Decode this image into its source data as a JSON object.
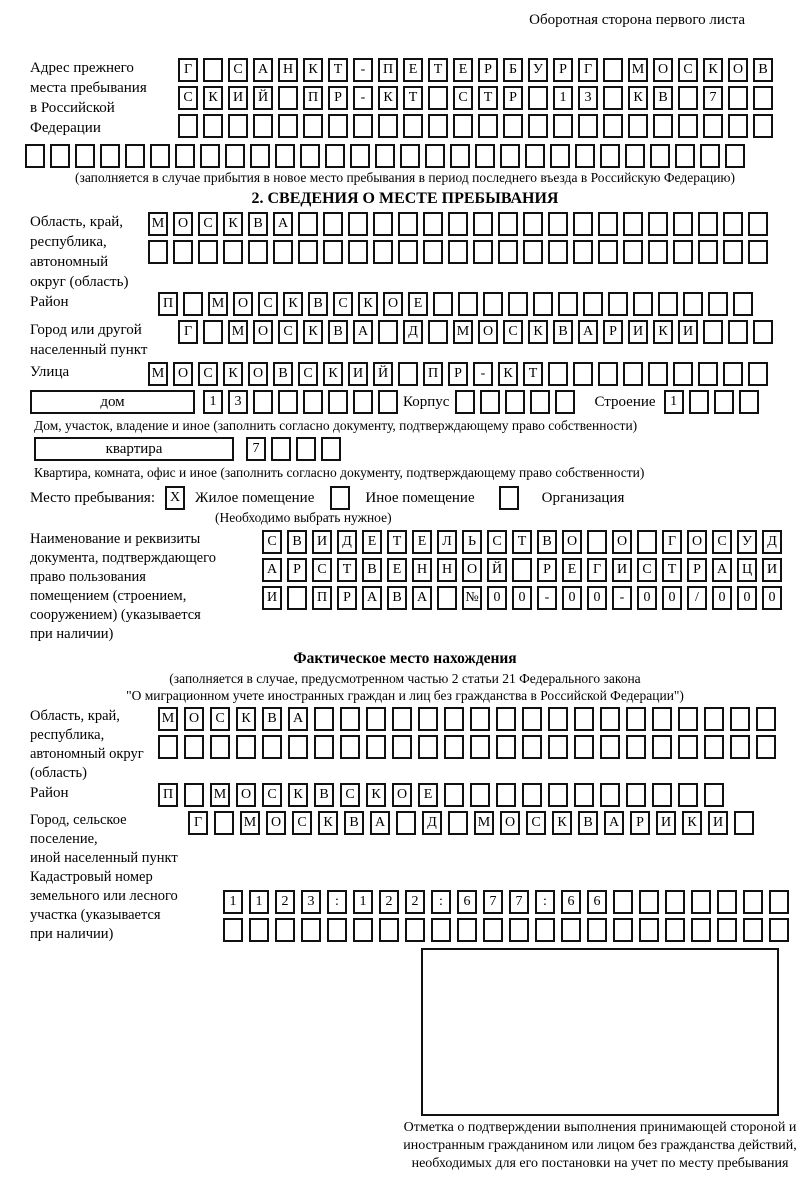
{
  "colors": {
    "ink": "#000000",
    "paper": "#ffffff"
  },
  "header": {
    "note": "Оборотная сторона первого листа"
  },
  "prev_address": {
    "label_lines": [
      "Адрес прежнего",
      "места пребывания",
      "в Российской",
      "Федерации"
    ],
    "rows": [
      {
        "t": "Г САНКТ-ПЕТЕРБУРГ МОСКОВ",
        "n": 24
      },
      {
        "t": "СКИЙ ПР-КТ СТР 13 КВ 7",
        "n": 24
      },
      {
        "t": "",
        "n": 24
      }
    ],
    "full_row": {
      "t": "",
      "n": 29
    },
    "note": "(заполняется в случае прибытия в новое место пребывания в период последнего въезда в Российскую Федерацию)"
  },
  "section2": {
    "title": "2. СВЕДЕНИЯ О МЕСТЕ ПРЕБЫВАНИЯ",
    "oblast": {
      "label_lines": [
        "Область, край,",
        "республика,",
        "автономный",
        "округ (область)"
      ],
      "rows": [
        {
          "t": "МОСКВА",
          "n": 25
        },
        {
          "t": "",
          "n": 25
        }
      ]
    },
    "raion": {
      "label": "Район",
      "row": {
        "t": "П МОСКВСКОЕ",
        "n": 24
      }
    },
    "gorod": {
      "label_lines": [
        "Город или другой",
        "населенный пункт"
      ],
      "row": {
        "t": "Г МОСКВА Д МОСКВАРИКИ",
        "n": 24
      }
    },
    "ulitsa": {
      "label": "Улица",
      "row": {
        "t": "МОСКОВСКИЙ ПР-КТ",
        "n": 25
      }
    },
    "dom": {
      "box_label": "дом",
      "cells": {
        "t": "13",
        "n": 8
      },
      "korpus_label": "Корпус",
      "korpus_cells": {
        "t": "",
        "n": 5
      },
      "stroenie_label": "Строение",
      "stroenie_cells": {
        "t": "1",
        "n": 4
      }
    },
    "dom_caption": "Дом, участок, владение и иное (заполнить согласно документу, подтверждающему право собственности)",
    "kvartira": {
      "box_label": "квартира",
      "cells": {
        "t": "7",
        "n": 4
      }
    },
    "kvartira_caption": "Квартира, комната, офис и иное (заполнить согласно документу, подтверждающему право собственности)",
    "mesto": {
      "label": "Место пребывания:",
      "options": [
        {
          "label": "Жилое помещение",
          "checked": "X"
        },
        {
          "label": "Иное помещение",
          "checked": ""
        },
        {
          "label": "Организация",
          "checked": ""
        }
      ],
      "note": "(Необходимо выбрать нужное)"
    },
    "doc": {
      "label_lines": [
        "Наименование и реквизиты",
        "документа, подтверждающего",
        "право пользования",
        "помещением (строением,",
        "сооружением) (указывается",
        "при наличии)"
      ],
      "rows": [
        {
          "t": "СВИДЕТЕЛЬСТВО О ГОСУД",
          "n": 21
        },
        {
          "t": "АРСТВЕННОЙ РЕГИСТРАЦИ",
          "n": 21
        },
        {
          "t": "И ПРАВА №00-00-00/000",
          "n": 21
        }
      ]
    }
  },
  "fact": {
    "title": "Фактическое место нахождения",
    "note_lines": [
      "(заполняется в случае, предусмотренном частью 2 статьи 21 Федерального закона",
      "\"О миграционном учете иностранных граждан и лиц без гражданства в Российской Федерации\")"
    ],
    "oblast": {
      "label_lines": [
        "Область, край,",
        "республика,",
        "автономный округ",
        "(область)"
      ],
      "rows": [
        {
          "t": "МОСКВА",
          "n": 24
        },
        {
          "t": "",
          "n": 24
        }
      ]
    },
    "raion": {
      "label": "Район",
      "row": {
        "t": "П МОСКВСКОЕ",
        "n": 22
      }
    },
    "gorod": {
      "label_lines": [
        "Город, сельское поселение,",
        "иной населенный пункт"
      ],
      "row": {
        "t": "Г МОСКВА Д МОСКВАРИКИ",
        "n": 22
      }
    },
    "kadastr": {
      "label_lines": [
        "Кадастровый номер",
        "земельного или лесного",
        "участка (указывается",
        "при наличии)"
      ],
      "rows": [
        {
          "t": "1123:122:677:66",
          "n": 22
        },
        {
          "t": "",
          "n": 22
        }
      ]
    },
    "stamp_caption": "Отметка о подтверждении выполнения принимающей стороной и иностранным гражданином или лицом без гражданства действий, необходимых для его постановки на учет по месту пребывания"
  }
}
